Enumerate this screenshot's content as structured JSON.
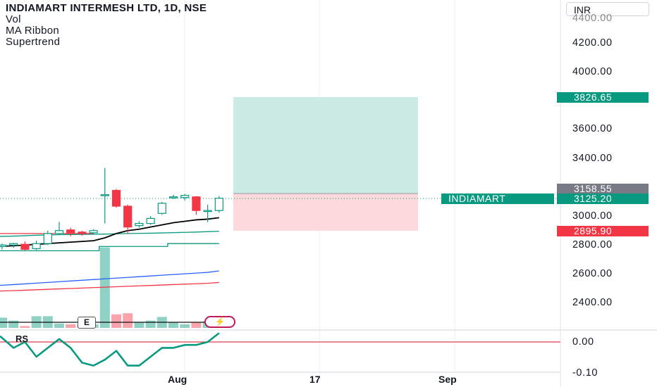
{
  "header": {
    "title": "INDIAMART INTERMESH LTD, 1D, NSE",
    "indicators": [
      "Vol",
      "MA Ribbon",
      "Supertrend"
    ]
  },
  "currency": "INR",
  "price_axis": {
    "labels": [
      "4200.00",
      "4000.00",
      "3600.00",
      "3400.00",
      "3000.00",
      "2800.00",
      "2600.00",
      "2400.00"
    ],
    "top_partial": "4400.00",
    "rs_labels": [
      "0.00",
      "-0.10"
    ]
  },
  "price_tags": {
    "target": "3826.65",
    "entry": "3158.55",
    "current_symbol": "INDIAMART",
    "current": "3125.20",
    "stop": "2895.90"
  },
  "time_axis": [
    "Aug",
    "17",
    "Sep"
  ],
  "badges": {
    "earnings": "E",
    "flash_icon": "lightning-icon"
  },
  "rs_panel": {
    "label": "RS"
  },
  "colors": {
    "up": "#089981",
    "down": "#f23645",
    "profit_zone": "#cdebe5",
    "loss_zone": "#fdd9dc",
    "ma_black": "#000000",
    "supertrend": "#089981",
    "ma_blue": "#2962ff",
    "ma_red": "#f23645"
  },
  "chart_data": {
    "type": "candlestick",
    "candles": [
      {
        "o": 2790,
        "h": 2810,
        "l": 2770,
        "c": 2800
      },
      {
        "o": 2800,
        "h": 2815,
        "l": 2780,
        "c": 2810
      },
      {
        "o": 2805,
        "h": 2825,
        "l": 2760,
        "c": 2770
      },
      {
        "o": 2775,
        "h": 2830,
        "l": 2765,
        "c": 2810
      },
      {
        "o": 2810,
        "h": 2900,
        "l": 2800,
        "c": 2880
      },
      {
        "o": 2880,
        "h": 2960,
        "l": 2870,
        "c": 2900
      },
      {
        "o": 2905,
        "h": 2920,
        "l": 2860,
        "c": 2885
      },
      {
        "o": 2890,
        "h": 2900,
        "l": 2865,
        "c": 2880
      },
      {
        "o": 2885,
        "h": 2910,
        "l": 2875,
        "c": 2900
      },
      {
        "o": 3150,
        "h": 3335,
        "l": 2950,
        "c": 3150
      },
      {
        "o": 3180,
        "h": 3190,
        "l": 3060,
        "c": 3070
      },
      {
        "o": 3070,
        "h": 3080,
        "l": 2880,
        "c": 2925
      },
      {
        "o": 2935,
        "h": 2965,
        "l": 2920,
        "c": 2950
      },
      {
        "o": 2950,
        "h": 3000,
        "l": 2940,
        "c": 2985
      },
      {
        "o": 3020,
        "h": 3100,
        "l": 3010,
        "c": 3090
      },
      {
        "o": 3130,
        "h": 3150,
        "l": 3120,
        "c": 3135
      },
      {
        "o": 3130,
        "h": 3155,
        "l": 3110,
        "c": 3145
      },
      {
        "o": 3135,
        "h": 3140,
        "l": 3010,
        "c": 3040
      },
      {
        "o": 3040,
        "h": 3080,
        "l": 2960,
        "c": 3040
      },
      {
        "o": 3040,
        "h": 3140,
        "l": 3025,
        "c": 3125
      }
    ],
    "ma_ribbon": {
      "black": [
        2790,
        2795,
        2800,
        2805,
        2810,
        2815,
        2820,
        2825,
        2830,
        2850,
        2880,
        2900,
        2910,
        2925,
        2940,
        2955,
        2965,
        2975,
        2980,
        2990
      ],
      "green": [
        2860,
        2862,
        2865,
        2868,
        2870,
        2872,
        2873,
        2874,
        2875,
        2876,
        2878,
        2880,
        2881,
        2882,
        2884,
        2886,
        2888,
        2890,
        2893,
        2896
      ],
      "blue": [
        2520,
        2525,
        2530,
        2535,
        2540,
        2545,
        2550,
        2555,
        2560,
        2565,
        2570,
        2575,
        2580,
        2585,
        2590,
        2595,
        2600,
        2605,
        2610,
        2620
      ],
      "red": [
        2480,
        2483,
        2486,
        2489,
        2492,
        2495,
        2498,
        2501,
        2504,
        2507,
        2510,
        2513,
        2516,
        2519,
        2522,
        2525,
        2528,
        2531,
        2534,
        2540
      ]
    },
    "supertrend": [
      2760,
      2760,
      2760,
      2760,
      2760,
      2760,
      2760,
      2760,
      2760,
      2790,
      2790,
      2790,
      2790,
      2790,
      2790,
      2810,
      2810,
      2810,
      2810,
      2810
    ],
    "volume_ratio": [
      0.28,
      0.2,
      0.05,
      0.32,
      0.32,
      0.12,
      0.1,
      0.08,
      0.1,
      2.2,
      0.37,
      0.4,
      0.15,
      0.2,
      0.3,
      0.15,
      0.1,
      0.15,
      0.18,
      0.2
    ],
    "rs": [
      0.02,
      -0.02,
      0.0,
      -0.05,
      -0.02,
      0.01,
      -0.02,
      -0.07,
      -0.08,
      -0.06,
      -0.03,
      -0.08,
      -0.08,
      -0.05,
      -0.02,
      -0.02,
      -0.01,
      -0.01,
      0.0,
      0.03
    ],
    "position": {
      "target": 3826.65,
      "entry": 3158.55,
      "stop": 2895.9
    },
    "y_axis_ticks": [
      4200,
      4000,
      3600,
      3400,
      3000,
      2800,
      2600,
      2400
    ]
  }
}
